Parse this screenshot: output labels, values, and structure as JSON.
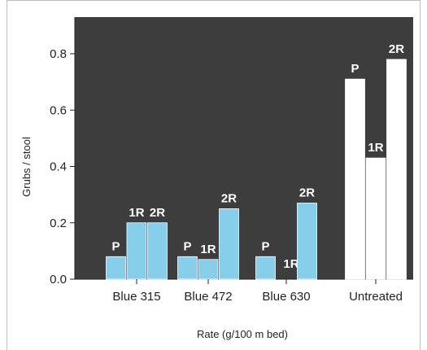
{
  "chart_data": {
    "type": "bar",
    "title": "",
    "xlabel": "Rate (g/100 m bed)",
    "ylabel": "Grubs / stool",
    "ylim": [
      0,
      0.9
    ],
    "yticks": [
      "0.0",
      "0.2",
      "0.4",
      "0.6",
      "0.8"
    ],
    "grid": false,
    "plot_background": "#3d3d3d",
    "categories": [
      "Blue 315",
      "Blue 472",
      "Blue 630",
      "Untreated"
    ],
    "series": [
      {
        "name": "P",
        "values": [
          0.08,
          0.08,
          0.08,
          0.71
        ]
      },
      {
        "name": "1R",
        "values": [
          0.2,
          0.07,
          0.0,
          0.43
        ]
      },
      {
        "name": "2R",
        "values": [
          0.2,
          0.25,
          0.27,
          0.78
        ]
      }
    ],
    "category_colors": [
      "#87ceeb",
      "#87ceeb",
      "#87ceeb",
      "#ffffff"
    ]
  }
}
